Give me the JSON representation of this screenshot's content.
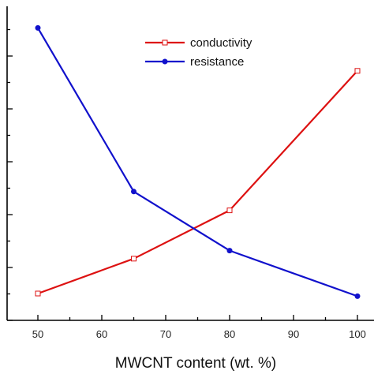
{
  "chart_data": {
    "type": "line",
    "title": "",
    "xlabel": "MWCNT content (wt. %)",
    "ylabel": "",
    "xlim": [
      40,
      105
    ],
    "x_ticks": [
      50,
      60,
      70,
      80,
      90,
      100
    ],
    "x_minor_step": 5,
    "ylim": [
      0,
      1
    ],
    "series": [
      {
        "name": "conductivity",
        "color": "#dd1111",
        "marker": "open-square",
        "x": [
          50,
          65,
          80,
          100
        ],
        "y": [
          0.1,
          0.23,
          0.41,
          0.93
        ]
      },
      {
        "name": "resistance",
        "color": "#1111cc",
        "marker": "filled-circle",
        "x": [
          50,
          65,
          80,
          100
        ],
        "y": [
          1.09,
          0.48,
          0.26,
          0.09
        ]
      }
    ],
    "legend": {
      "position": "top-center",
      "entries": [
        "conductivity",
        "resistance"
      ]
    },
    "grid": false
  }
}
